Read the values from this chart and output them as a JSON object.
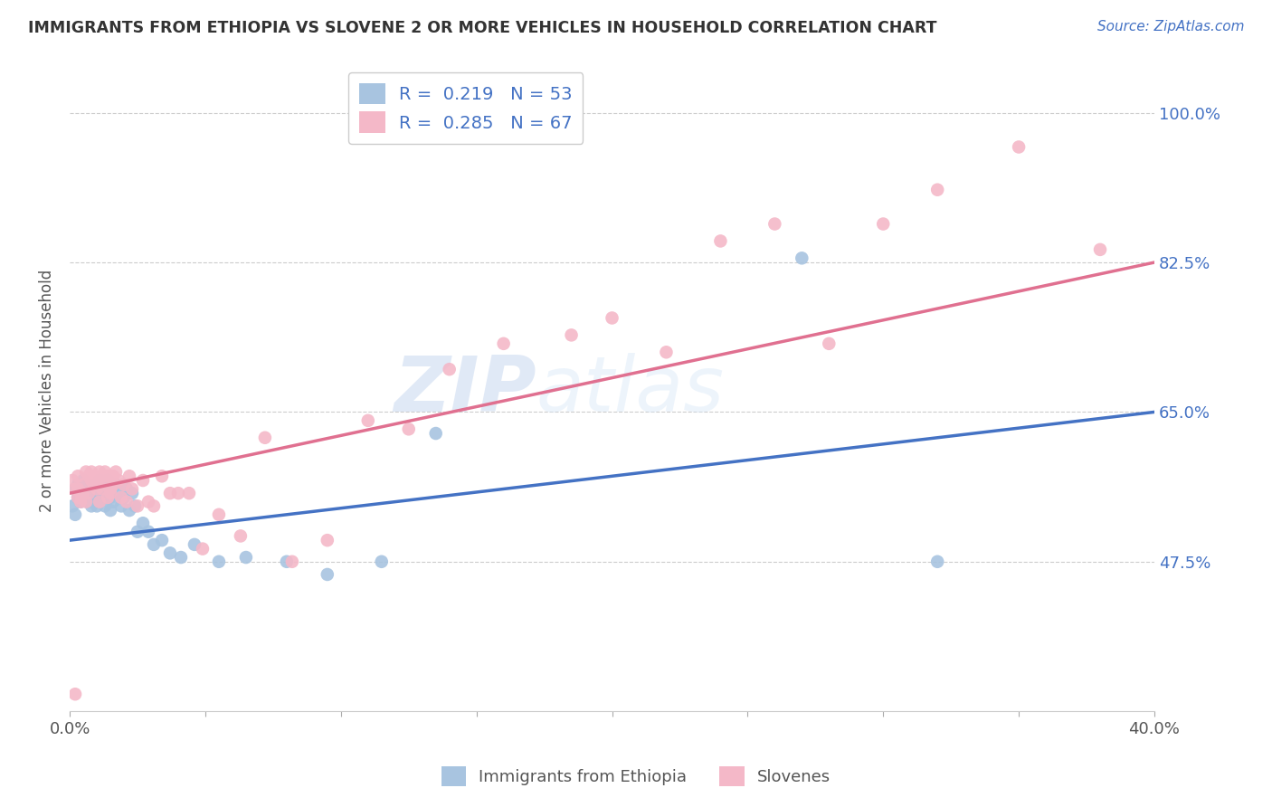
{
  "title": "IMMIGRANTS FROM ETHIOPIA VS SLOVENE 2 OR MORE VEHICLES IN HOUSEHOLD CORRELATION CHART",
  "source": "Source: ZipAtlas.com",
  "ylabel": "2 or more Vehicles in Household",
  "xlim": [
    0.0,
    0.4
  ],
  "ylim": [
    0.3,
    1.05
  ],
  "ytick_positions": [
    0.475,
    0.65,
    0.825,
    1.0
  ],
  "ytick_labels": [
    "47.5%",
    "65.0%",
    "82.5%",
    "100.0%"
  ],
  "r_ethiopia": 0.219,
  "n_ethiopia": 53,
  "r_slovene": 0.285,
  "n_slovene": 67,
  "color_ethiopia": "#a8c4e0",
  "color_slovene": "#f4b8c8",
  "line_color_ethiopia": "#4472c4",
  "line_color_slovene": "#e07090",
  "watermark_zip": "ZIP",
  "watermark_atlas": "atlas",
  "legend_label_ethiopia": "Immigrants from Ethiopia",
  "legend_label_slovene": "Slovenes",
  "line_eth_x0": 0.0,
  "line_eth_y0": 0.5,
  "line_eth_x1": 0.4,
  "line_eth_y1": 0.65,
  "line_slo_x0": 0.0,
  "line_slo_y0": 0.555,
  "line_slo_x1": 0.4,
  "line_slo_y1": 0.825,
  "ethiopia_x": [
    0.001,
    0.002,
    0.002,
    0.003,
    0.003,
    0.004,
    0.004,
    0.005,
    0.005,
    0.006,
    0.006,
    0.007,
    0.007,
    0.008,
    0.008,
    0.009,
    0.009,
    0.01,
    0.01,
    0.011,
    0.011,
    0.012,
    0.012,
    0.013,
    0.013,
    0.014,
    0.015,
    0.015,
    0.016,
    0.017,
    0.018,
    0.019,
    0.02,
    0.021,
    0.022,
    0.023,
    0.024,
    0.025,
    0.027,
    0.029,
    0.031,
    0.034,
    0.037,
    0.041,
    0.046,
    0.055,
    0.065,
    0.08,
    0.095,
    0.115,
    0.135,
    0.27,
    0.32
  ],
  "ethiopia_y": [
    0.54,
    0.53,
    0.56,
    0.55,
    0.565,
    0.545,
    0.56,
    0.57,
    0.555,
    0.56,
    0.55,
    0.545,
    0.565,
    0.555,
    0.54,
    0.55,
    0.56,
    0.54,
    0.555,
    0.545,
    0.57,
    0.565,
    0.555,
    0.56,
    0.54,
    0.57,
    0.55,
    0.535,
    0.545,
    0.565,
    0.555,
    0.54,
    0.55,
    0.56,
    0.535,
    0.555,
    0.54,
    0.51,
    0.52,
    0.51,
    0.495,
    0.5,
    0.485,
    0.48,
    0.495,
    0.475,
    0.48,
    0.475,
    0.46,
    0.475,
    0.625,
    0.83,
    0.475
  ],
  "slovene_x": [
    0.001,
    0.002,
    0.002,
    0.003,
    0.003,
    0.003,
    0.004,
    0.004,
    0.005,
    0.005,
    0.006,
    0.006,
    0.007,
    0.007,
    0.008,
    0.008,
    0.009,
    0.009,
    0.01,
    0.01,
    0.011,
    0.011,
    0.012,
    0.012,
    0.013,
    0.013,
    0.014,
    0.014,
    0.015,
    0.015,
    0.016,
    0.016,
    0.017,
    0.018,
    0.019,
    0.02,
    0.021,
    0.022,
    0.023,
    0.025,
    0.027,
    0.029,
    0.031,
    0.034,
    0.037,
    0.04,
    0.044,
    0.049,
    0.055,
    0.063,
    0.072,
    0.082,
    0.095,
    0.11,
    0.125,
    0.14,
    0.16,
    0.185,
    0.2,
    0.22,
    0.24,
    0.26,
    0.28,
    0.3,
    0.32,
    0.35,
    0.38
  ],
  "slovene_y": [
    0.57,
    0.32,
    0.56,
    0.55,
    0.56,
    0.575,
    0.555,
    0.545,
    0.565,
    0.555,
    0.58,
    0.545,
    0.575,
    0.555,
    0.57,
    0.58,
    0.565,
    0.575,
    0.56,
    0.57,
    0.58,
    0.545,
    0.575,
    0.56,
    0.565,
    0.58,
    0.55,
    0.575,
    0.56,
    0.555,
    0.575,
    0.565,
    0.58,
    0.57,
    0.55,
    0.565,
    0.545,
    0.575,
    0.56,
    0.54,
    0.57,
    0.545,
    0.54,
    0.575,
    0.555,
    0.555,
    0.555,
    0.49,
    0.53,
    0.505,
    0.62,
    0.475,
    0.5,
    0.64,
    0.63,
    0.7,
    0.73,
    0.74,
    0.76,
    0.72,
    0.85,
    0.87,
    0.73,
    0.87,
    0.91,
    0.96,
    0.84
  ]
}
